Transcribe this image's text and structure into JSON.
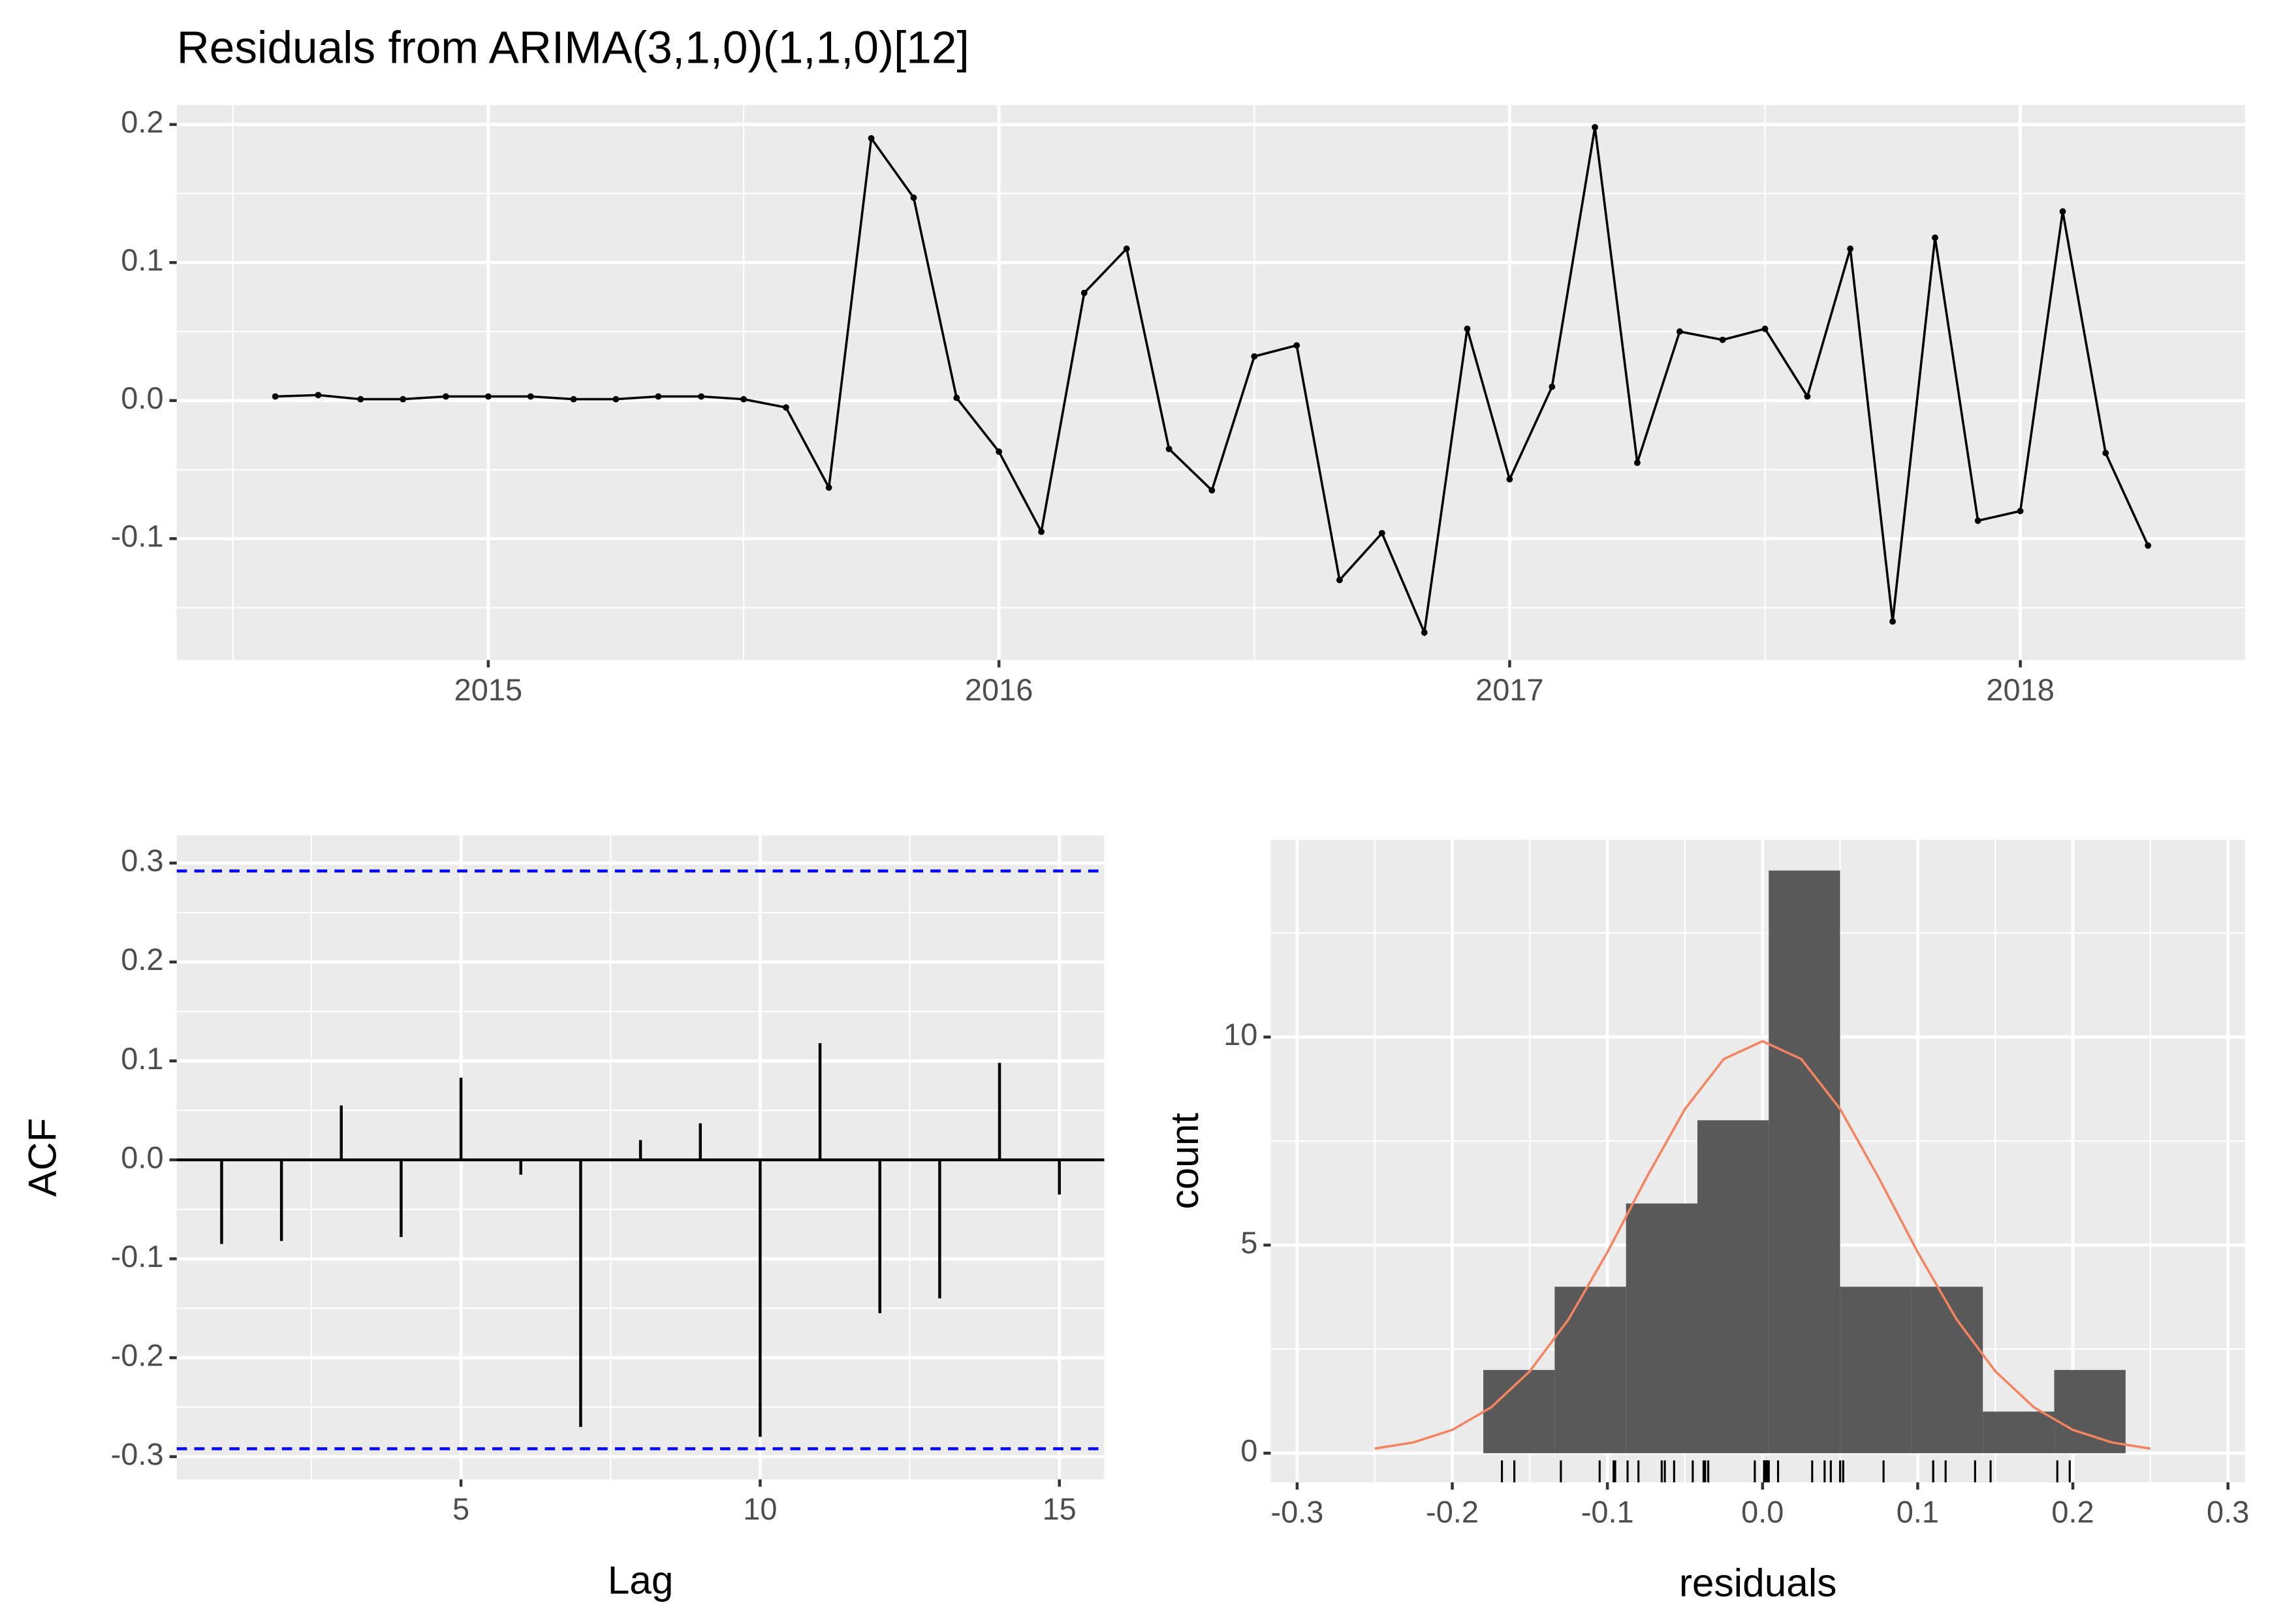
{
  "chart_data": [
    {
      "type": "line",
      "title": "Residuals from ARIMA(3,1,0)(1,1,0)[12]",
      "x": [
        2014.583,
        2014.667,
        2014.75,
        2014.833,
        2014.917,
        2015,
        2015.083,
        2015.167,
        2015.25,
        2015.333,
        2015.417,
        2015.5,
        2015.583,
        2015.667,
        2015.75,
        2015.833,
        2015.917,
        2016,
        2016.083,
        2016.167,
        2016.25,
        2016.333,
        2016.417,
        2016.5,
        2016.583,
        2016.667,
        2016.75,
        2016.833,
        2016.917,
        2017,
        2017.083,
        2017.167,
        2017.25,
        2017.333,
        2017.417,
        2017.5,
        2017.583,
        2017.667,
        2017.75,
        2017.833,
        2017.917,
        2018,
        2018.083,
        2018.167,
        2018.25
      ],
      "values": [
        0.003,
        0.004,
        0.001,
        0.001,
        0.003,
        0.003,
        0.003,
        0.001,
        0.001,
        0.003,
        0.003,
        0.001,
        -0.005,
        -0.063,
        0.19,
        0.147,
        0.002,
        -0.037,
        -0.095,
        0.078,
        0.11,
        -0.035,
        -0.065,
        0.032,
        0.04,
        -0.13,
        -0.096,
        -0.168,
        0.052,
        -0.057,
        0.01,
        0.198,
        -0.045,
        0.05,
        0.044,
        0.052,
        0.003,
        0.11,
        -0.16,
        0.118,
        -0.087,
        -0.08,
        0.137,
        -0.038,
        -0.105
      ],
      "color": "#000000",
      "xlim": [
        2014.39,
        2018.44
      ],
      "xticks": [
        2015,
        2016,
        2017,
        2018
      ],
      "ylim": [
        -0.188,
        0.214
      ],
      "yticks": [
        -0.1,
        {
          "value": 0,
          "label": "0.0"
        },
        0.1,
        0.2
      ],
      "grid": true
    },
    {
      "type": "acf",
      "x_label": "Lag",
      "y_label": "ACF",
      "lags": [
        1,
        2,
        3,
        4,
        5,
        6,
        7,
        8,
        9,
        10,
        11,
        12,
        13,
        14,
        15
      ],
      "values": [
        -0.085,
        -0.082,
        0.055,
        -0.078,
        0.083,
        -0.015,
        -0.27,
        0.02,
        0.037,
        -0.28,
        0.118,
        -0.155,
        -0.14,
        0.098,
        -0.035
      ],
      "color": "#000000",
      "conf_limits": [
        0.292,
        -0.292
      ],
      "conf_color": "#0000ff",
      "xlim": [
        0.25,
        15.75
      ],
      "xticks": [
        5,
        10,
        15
      ],
      "ylim": [
        -0.323,
        0.328
      ],
      "yticks": [
        -0.3,
        -0.2,
        -0.1,
        {
          "value": 0,
          "label": "0.0"
        },
        0.1,
        0.2,
        0.3
      ],
      "grid": true
    },
    {
      "type": "histogram",
      "x_label": "residuals",
      "y_label": "count",
      "bins": [
        -0.18,
        -0.134,
        -0.088,
        -0.042,
        0.004,
        0.05,
        0.096,
        0.142,
        0.188,
        0.234
      ],
      "counts": [
        2,
        4,
        6,
        8,
        14,
        4,
        4,
        1,
        2
      ],
      "color": "#595959",
      "curve": {
        "x": [
          -0.25,
          -0.225,
          -0.2,
          -0.175,
          -0.15,
          -0.125,
          -0.1,
          -0.075,
          -0.05,
          -0.025,
          0,
          0.025,
          0.05,
          0.075,
          0.1,
          0.125,
          0.15,
          0.175,
          0.2,
          0.225,
          0.25
        ],
        "values": [
          0.11,
          0.26,
          0.56,
          1.1,
          1.97,
          3.22,
          4.83,
          6.61,
          8.27,
          9.47,
          9.9,
          9.47,
          8.27,
          6.61,
          4.83,
          3.22,
          1.97,
          1.1,
          0.56,
          0.26,
          0.11
        ],
        "color": "#f4845f"
      },
      "rug": true,
      "xlim": [
        -0.317,
        0.311
      ],
      "xticks": [
        -0.3,
        -0.2,
        -0.1,
        {
          "value": 0,
          "label": "0.0"
        },
        0.1,
        0.2,
        0.3
      ],
      "ylim": [
        -0.7,
        14.74
      ],
      "yticks": [
        0,
        5,
        10
      ],
      "grid": true
    }
  ]
}
